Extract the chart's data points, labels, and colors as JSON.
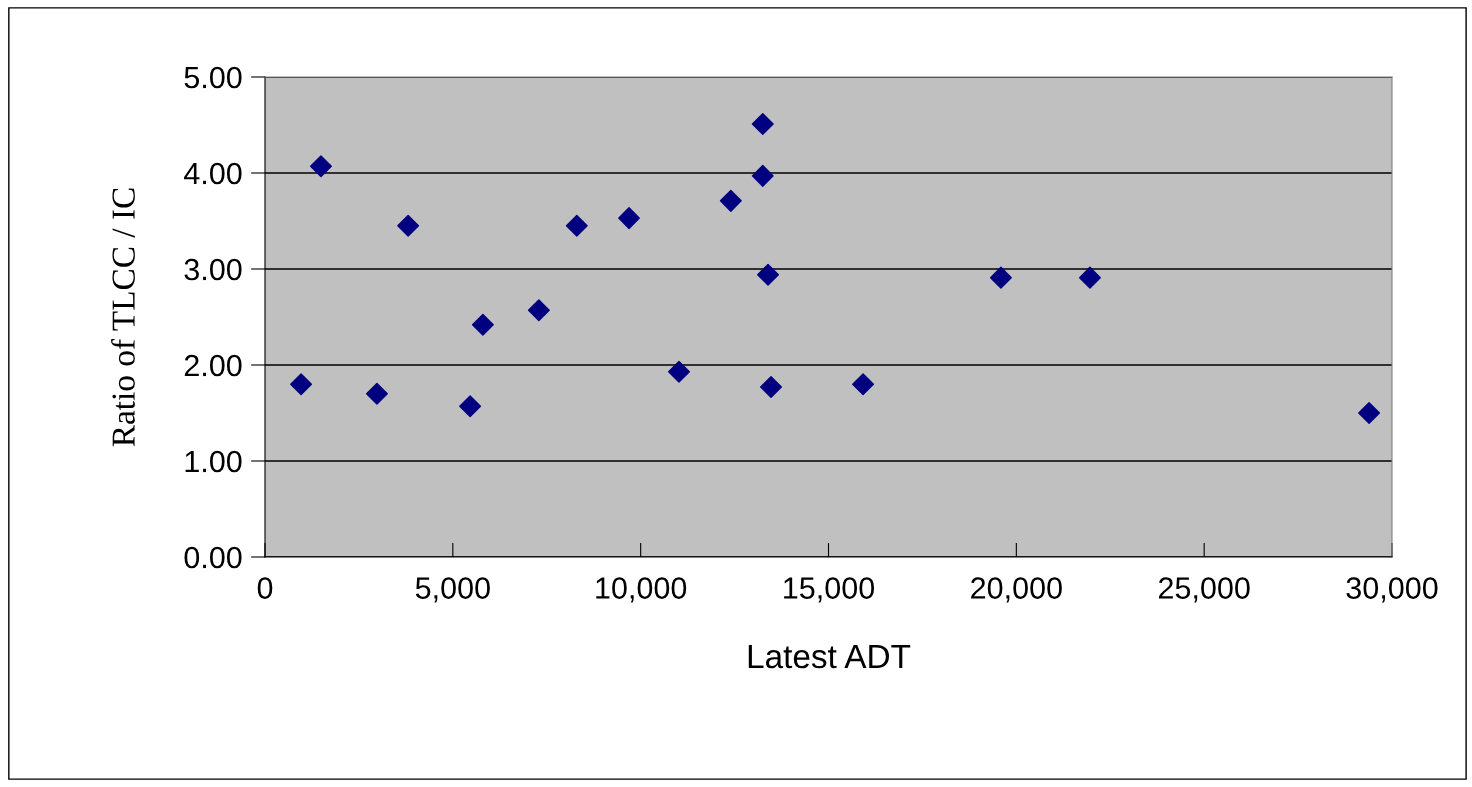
{
  "chart_data": {
    "type": "scatter",
    "xlabel": "Latest ADT",
    "ylabel": "Ratio of TLCC / IC",
    "x": [
      960,
      1490,
      2980,
      3810,
      5460,
      5800,
      7290,
      8300,
      9690,
      11020,
      12400,
      13250,
      13250,
      13390,
      13470,
      15920,
      19590,
      21960,
      29390
    ],
    "series": [
      {
        "color": "#000080",
        "values": [
          1.8,
          4.07,
          1.7,
          3.45,
          1.57,
          2.42,
          2.57,
          3.45,
          3.53,
          1.93,
          3.71,
          4.51,
          3.97,
          2.94,
          1.77,
          1.8,
          2.91,
          2.91,
          1.5
        ]
      }
    ],
    "xlim": [
      0,
      30000
    ],
    "xticks": [
      {
        "value": 0,
        "label": "0"
      },
      {
        "value": 5000,
        "label": "5,000"
      },
      {
        "value": 10000,
        "label": "10,000"
      },
      {
        "value": 15000,
        "label": "15,000"
      },
      {
        "value": 20000,
        "label": "20,000"
      },
      {
        "value": 25000,
        "label": "25,000"
      },
      {
        "value": 30000,
        "label": "30,000"
      }
    ],
    "ylim": [
      0,
      5
    ],
    "yticks": [
      {
        "value": 0,
        "label": "0.00"
      },
      {
        "value": 1,
        "label": "1.00"
      },
      {
        "value": 2,
        "label": "2.00"
      },
      {
        "value": 3,
        "label": "3.00"
      },
      {
        "value": 4,
        "label": "4.00"
      },
      {
        "value": 5,
        "label": "5.00"
      }
    ],
    "grid": "y",
    "marker": "diamond",
    "legend": false
  }
}
